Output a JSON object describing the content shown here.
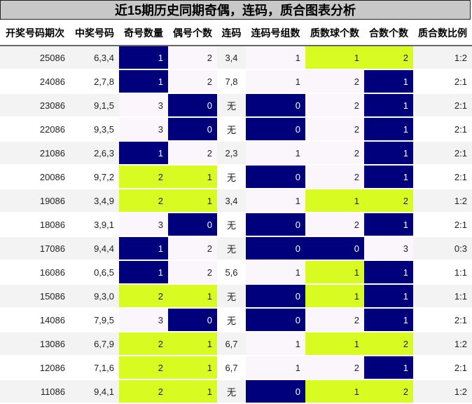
{
  "title": "近15期历史同期奇偶，连码，质合图表分析",
  "headers": [
    "开奖号码期次",
    "中奖号码",
    "奇号数量",
    "偶号个数",
    "连码",
    "连码号组数",
    "质数球个数",
    "合数个数",
    "质合数比例"
  ],
  "colors": {
    "blue": "#00007d",
    "green": "#d8fb21",
    "pink": "#fbf6fb",
    "row_gray": "#f3f3f3"
  },
  "rows": [
    [
      "25086",
      "6,3,4",
      "1",
      "2",
      "3,4",
      "1",
      "1",
      "2",
      "1:2"
    ],
    [
      "24086",
      "2,7,8",
      "1",
      "2",
      "7,8",
      "1",
      "2",
      "1",
      "2:1"
    ],
    [
      "23086",
      "9,1,5",
      "3",
      "0",
      "无",
      "0",
      "2",
      "1",
      "2:1"
    ],
    [
      "22086",
      "9,3,5",
      "3",
      "0",
      "无",
      "0",
      "2",
      "1",
      "2:1"
    ],
    [
      "21086",
      "2,6,3",
      "1",
      "2",
      "2,3",
      "1",
      "2",
      "1",
      "2:1"
    ],
    [
      "20086",
      "9,7,2",
      "2",
      "1",
      "无",
      "0",
      "2",
      "1",
      "2:1"
    ],
    [
      "19086",
      "3,4,9",
      "2",
      "1",
      "3,4",
      "1",
      "1",
      "2",
      "1:2"
    ],
    [
      "18086",
      "3,9,1",
      "3",
      "0",
      "无",
      "0",
      "2",
      "1",
      "2:1"
    ],
    [
      "17086",
      "9,4,4",
      "1",
      "2",
      "无",
      "0",
      "0",
      "3",
      "0:3"
    ],
    [
      "16086",
      "0,6,5",
      "1",
      "2",
      "5,6",
      "1",
      "1",
      "1",
      "1:1"
    ],
    [
      "15086",
      "9,3,0",
      "2",
      "1",
      "无",
      "0",
      "1",
      "1",
      "1:1"
    ],
    [
      "14086",
      "7,9,5",
      "3",
      "0",
      "无",
      "0",
      "2",
      "1",
      "2:1"
    ],
    [
      "13086",
      "6,7,9",
      "2",
      "1",
      "6,7",
      "1",
      "1",
      "2",
      "1:2"
    ],
    [
      "12086",
      "7,1,6",
      "2",
      "1",
      "6,7",
      "1",
      "2",
      "1",
      "2:1"
    ],
    [
      "11086",
      "9,4,1",
      "2",
      "1",
      "无",
      "0",
      "1",
      "2",
      "1:2"
    ]
  ],
  "cell_colors": [
    [
      "",
      "",
      "blue",
      "pink",
      "",
      "pink",
      "green",
      "green",
      ""
    ],
    [
      "",
      "",
      "blue",
      "pink",
      "",
      "pink",
      "pink",
      "blue",
      ""
    ],
    [
      "",
      "",
      "pink",
      "blue",
      "",
      "blue",
      "pink",
      "blue",
      ""
    ],
    [
      "",
      "",
      "pink",
      "blue",
      "",
      "blue",
      "pink",
      "blue",
      ""
    ],
    [
      "",
      "",
      "blue",
      "pink",
      "",
      "pink",
      "pink",
      "blue",
      ""
    ],
    [
      "",
      "",
      "green",
      "green",
      "",
      "blue",
      "pink",
      "blue",
      ""
    ],
    [
      "",
      "",
      "green",
      "green",
      "",
      "pink",
      "green",
      "green",
      ""
    ],
    [
      "",
      "",
      "pink",
      "blue",
      "",
      "blue",
      "pink",
      "blue",
      ""
    ],
    [
      "",
      "",
      "blue",
      "pink",
      "",
      "blue",
      "blue",
      "pink",
      ""
    ],
    [
      "",
      "",
      "blue",
      "pink",
      "",
      "pink",
      "green",
      "blue",
      ""
    ],
    [
      "",
      "",
      "green",
      "green",
      "",
      "blue",
      "green",
      "blue",
      ""
    ],
    [
      "",
      "",
      "pink",
      "blue",
      "",
      "blue",
      "pink",
      "blue",
      ""
    ],
    [
      "",
      "",
      "green",
      "green",
      "",
      "pink",
      "green",
      "green",
      ""
    ],
    [
      "",
      "",
      "green",
      "green",
      "",
      "pink",
      "pink",
      "blue",
      ""
    ],
    [
      "",
      "",
      "green",
      "green",
      "",
      "blue",
      "green",
      "green",
      ""
    ]
  ]
}
